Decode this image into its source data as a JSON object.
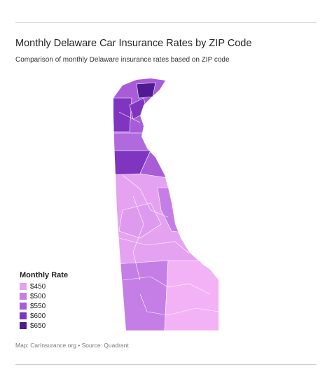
{
  "header": {
    "title": "Monthly Delaware Car Insurance Rates by ZIP Code",
    "subtitle": "Comparison of monthly Delaware insurance rates based on ZIP code"
  },
  "legend": {
    "title": "Monthly Rate",
    "items": [
      {
        "value": 450,
        "label": "$450",
        "color": "#e4a2f1"
      },
      {
        "value": 500,
        "label": "$500",
        "color": "#c57ee6"
      },
      {
        "value": 550,
        "label": "$550",
        "color": "#a85cd8"
      },
      {
        "value": 600,
        "label": "$600",
        "color": "#7f35c0"
      },
      {
        "value": 650,
        "label": "$650",
        "color": "#4f1a93"
      }
    ]
  },
  "footer": {
    "source": "Map: CarInsurance.org • Source: Quadrant"
  }
}
